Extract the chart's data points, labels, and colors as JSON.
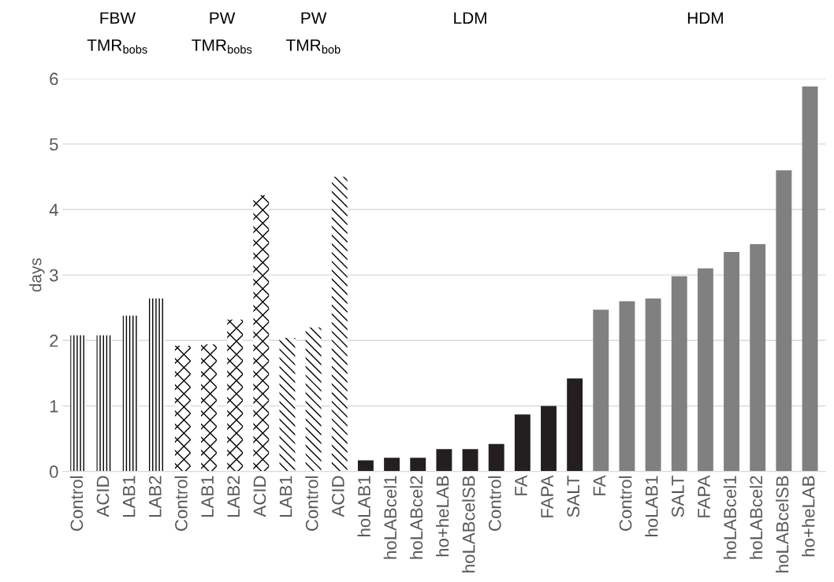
{
  "chart_data": {
    "type": "bar",
    "ylabel": "days",
    "categories": [
      "Control",
      "ACID",
      "LAB1",
      "LAB2",
      "Control",
      "LAB1",
      "LAB2",
      "ACID",
      "LAB1",
      "Control",
      "ACID",
      "hoLAB1",
      "hoLABcel1",
      "hoLABcel2",
      "ho+heLAB",
      "hoLABcelSB",
      "Control",
      "FA",
      "FAPA",
      "SALT",
      "FA",
      "Control",
      "hoLAB1",
      "SALT",
      "FAPA",
      "hoLABcel1",
      "hoLABcel2",
      "hoLABcelSB",
      "ho+heLAB"
    ],
    "series": [
      {
        "color": "#000000",
        "values": [
          2.08,
          2.08,
          2.38,
          2.64,
          null,
          null,
          null,
          null,
          null,
          null,
          null,
          null,
          null,
          null,
          null,
          null,
          null,
          null,
          null,
          null,
          null,
          null,
          null,
          null,
          null,
          null,
          null,
          null,
          null
        ]
      },
      {
        "color": "#000000",
        "values": [
          null,
          null,
          null,
          null,
          1.92,
          1.94,
          2.32,
          4.22,
          null,
          null,
          null,
          null,
          null,
          null,
          null,
          null,
          null,
          null,
          null,
          null,
          null,
          null,
          null,
          null,
          null,
          null,
          null,
          null,
          null
        ]
      },
      {
        "color": "#000000",
        "values": [
          null,
          null,
          null,
          null,
          null,
          null,
          null,
          null,
          2.04,
          2.2,
          4.5,
          null,
          null,
          null,
          null,
          null,
          null,
          null,
          null,
          null,
          null,
          null,
          null,
          null,
          null,
          null,
          null,
          null,
          null
        ]
      },
      {
        "color": "#231f20",
        "values": [
          null,
          null,
          null,
          null,
          null,
          null,
          null,
          null,
          null,
          null,
          null,
          0.17,
          0.21,
          0.21,
          0.34,
          0.34,
          0.42,
          0.87,
          1.0,
          1.42,
          null,
          null,
          null,
          null,
          null,
          null,
          null,
          null,
          null
        ]
      },
      {
        "color": "#808080",
        "values": [
          null,
          null,
          null,
          null,
          null,
          null,
          null,
          null,
          null,
          null,
          null,
          null,
          null,
          null,
          null,
          null,
          null,
          null,
          null,
          null,
          2.47,
          2.6,
          2.64,
          2.98,
          3.1,
          3.35,
          3.47,
          4.6,
          5.88
        ]
      }
    ],
    "annotations": [
      "FBW\nTMR$_{bobs}$",
      "PW\nTMR$_{bobs}$",
      "PW\nTMR$_{bob}$",
      "LDM",
      "HDM"
    ],
    "ylim": [
      0,
      6
    ],
    "yticks": [
      0,
      1,
      2,
      3,
      4,
      5,
      6
    ],
    "grid": "y",
    "legend": false
  }
}
